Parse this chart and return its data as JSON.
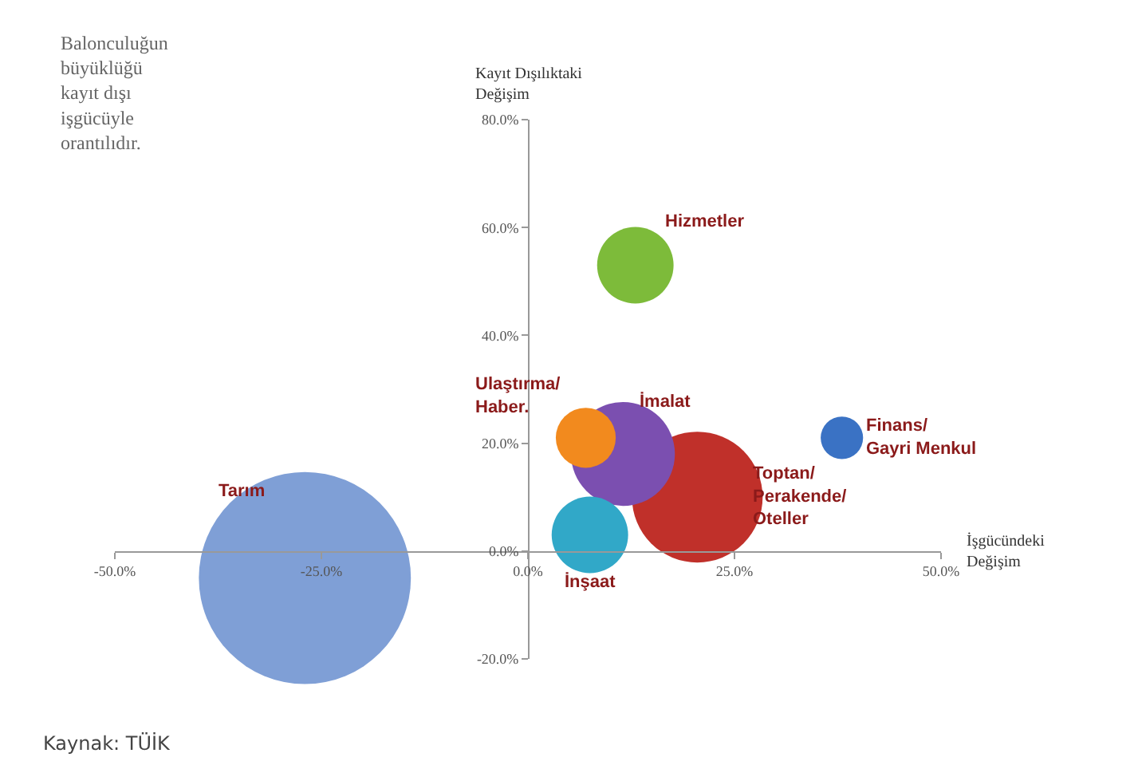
{
  "chart_data": {
    "type": "bubble",
    "xlabel": "İşgücündeki Değişim",
    "ylabel": "Kayıt Dışılıktaki Değişim",
    "annotations": [
      "Balonculuğun büyüklüğü kayıt dışı işgücüyle orantılıdır.",
      "Kaynak: TÜİK"
    ],
    "xlim": [
      -50,
      50
    ],
    "ylim": [
      -20,
      80
    ],
    "xticks": [
      {
        "value": -50,
        "label": "-50.0%"
      },
      {
        "value": -25,
        "label": "-25.0%"
      },
      {
        "value": 0,
        "label": "0.0%"
      },
      {
        "value": 25,
        "label": "25.0%"
      },
      {
        "value": 50,
        "label": "50.0%"
      }
    ],
    "yticks": [
      {
        "value": -20,
        "label": "-20.0%"
      },
      {
        "value": 0,
        "label": "0.0%"
      },
      {
        "value": 20,
        "label": "20.0%"
      },
      {
        "value": 40,
        "label": "40.0%"
      },
      {
        "value": 60,
        "label": "60.0%"
      },
      {
        "value": 80,
        "label": "80.0%"
      }
    ],
    "grid": false,
    "legend": false,
    "series": [
      {
        "name": "Tarım",
        "color": "#7f9fd6",
        "x": [
          -27
        ],
        "values": [
          -5
        ],
        "sizes": [
          1
        ]
      },
      {
        "name": "Hizmetler",
        "color": "#7dbb3a",
        "x": [
          13
        ],
        "values": [
          53
        ],
        "sizes": [
          0.13
        ]
      },
      {
        "name": "Ulaştırma/ Haber.",
        "color": "#f28a1e",
        "x": [
          7
        ],
        "values": [
          21
        ],
        "sizes": [
          0.08
        ]
      },
      {
        "name": "İmalat",
        "color": "#7b4fb0",
        "x": [
          11.5
        ],
        "values": [
          18
        ],
        "sizes": [
          0.24
        ]
      },
      {
        "name": "Finans/ Gayri Menkul",
        "color": "#3a72c4",
        "x": [
          38
        ],
        "values": [
          21
        ],
        "sizes": [
          0.04
        ]
      },
      {
        "name": "Toptan/ Perakende/ Oteller",
        "color": "#c0302a",
        "x": [
          20.5
        ],
        "values": [
          10
        ],
        "sizes": [
          0.38
        ]
      },
      {
        "name": "İnşaat",
        "color": "#31a8c8",
        "x": [
          7.5
        ],
        "values": [
          3
        ],
        "sizes": [
          0.13
        ]
      }
    ]
  }
}
